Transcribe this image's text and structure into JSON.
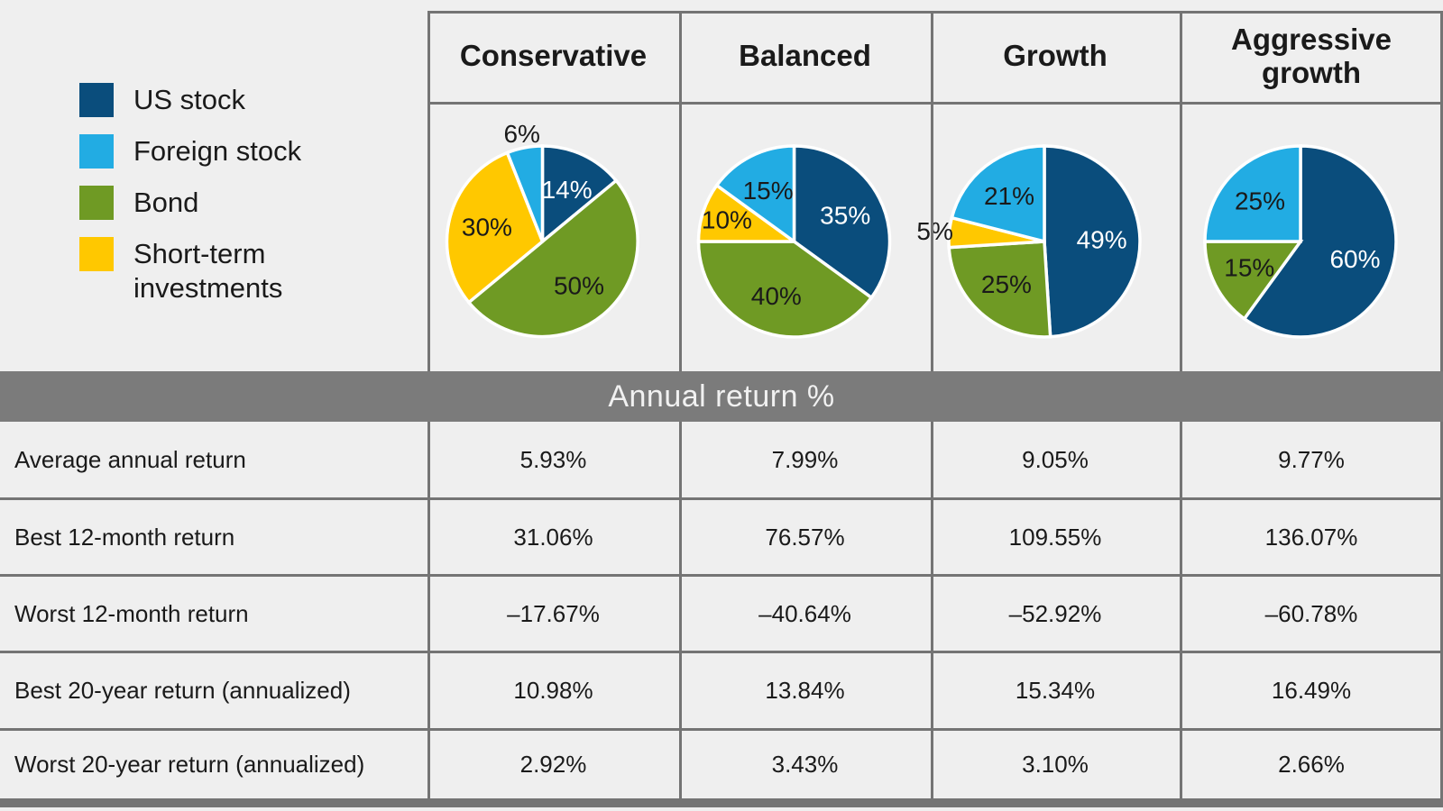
{
  "colors": {
    "background": "#EFEFEF",
    "border": "#747474",
    "banner_bg": "#7B7B7B",
    "banner_text": "#F1F1F1",
    "text": "#1A1A1A",
    "us_stock": "#0A4D7C",
    "foreign_stock": "#22ACE3",
    "bond": "#6F9A24",
    "short_term": "#FFC800"
  },
  "legend": {
    "items": [
      {
        "key": "us_stock",
        "label": "US stock"
      },
      {
        "key": "foreign_stock",
        "label": "Foreign stock"
      },
      {
        "key": "bond",
        "label": "Bond"
      },
      {
        "key": "short_term",
        "label": "Short-term investments"
      }
    ]
  },
  "portfolios": [
    "Conservative",
    "Balanced",
    "Growth",
    "Aggressive growth"
  ],
  "banner": {
    "label": "Annual return %"
  },
  "chart_data": [
    {
      "type": "pie",
      "title": "Conservative",
      "slices": [
        {
          "label": "US stock",
          "key": "us_stock",
          "value": 14
        },
        {
          "label": "Bond",
          "key": "bond",
          "value": 50
        },
        {
          "label": "Short-term investments",
          "key": "short_term",
          "value": 30
        },
        {
          "label": "Foreign stock",
          "key": "foreign_stock",
          "value": 6
        }
      ],
      "start_angle_deg": 0,
      "direction": "clockwise"
    },
    {
      "type": "pie",
      "title": "Balanced",
      "slices": [
        {
          "label": "US stock",
          "key": "us_stock",
          "value": 35
        },
        {
          "label": "Bond",
          "key": "bond",
          "value": 40
        },
        {
          "label": "Short-term investments",
          "key": "short_term",
          "value": 10
        },
        {
          "label": "Foreign stock",
          "key": "foreign_stock",
          "value": 15
        }
      ],
      "start_angle_deg": 0,
      "direction": "clockwise"
    },
    {
      "type": "pie",
      "title": "Growth",
      "slices": [
        {
          "label": "US stock",
          "key": "us_stock",
          "value": 49
        },
        {
          "label": "Bond",
          "key": "bond",
          "value": 25
        },
        {
          "label": "Short-term investments",
          "key": "short_term",
          "value": 5
        },
        {
          "label": "Foreign stock",
          "key": "foreign_stock",
          "value": 21
        }
      ],
      "start_angle_deg": 0,
      "direction": "clockwise"
    },
    {
      "type": "pie",
      "title": "Aggressive growth",
      "slices": [
        {
          "label": "US stock",
          "key": "us_stock",
          "value": 60
        },
        {
          "label": "Bond",
          "key": "bond",
          "value": 15
        },
        {
          "label": "Foreign stock",
          "key": "foreign_stock",
          "value": 25
        }
      ],
      "start_angle_deg": 0,
      "direction": "clockwise"
    }
  ],
  "table": {
    "section_header": "Annual return %",
    "column_headers": [
      "Conservative",
      "Balanced",
      "Growth",
      "Aggressive growth"
    ],
    "rows": [
      {
        "label": "Average annual return",
        "values": [
          "5.93%",
          "7.99%",
          "9.05%",
          "9.77%"
        ]
      },
      {
        "label": "Best 12-month return",
        "values": [
          "31.06%",
          "76.57%",
          "109.55%",
          "136.07%"
        ]
      },
      {
        "label": "Worst 12-month return",
        "values": [
          "–17.67%",
          "–40.64%",
          "–52.92%",
          "–60.78%"
        ]
      },
      {
        "label": "Best 20-year return (annualized)",
        "values": [
          "10.98%",
          "13.84%",
          "15.34%",
          "16.49%"
        ]
      },
      {
        "label": "Worst 20-year return (annualized)",
        "values": [
          "2.92%",
          "3.43%",
          "3.10%",
          "2.66%"
        ]
      }
    ]
  }
}
